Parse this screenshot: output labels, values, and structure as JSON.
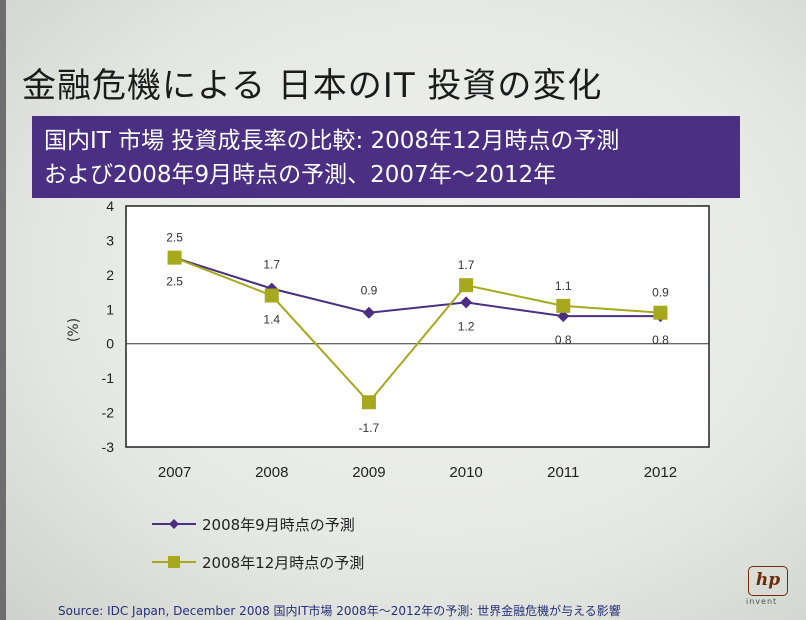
{
  "slide": {
    "title": "金融危機による 日本のIT 投資の変化",
    "banner_line1": "国内IT 市場 投資成長率の比較: 2008年12月時点の予測",
    "banner_line2": "および2008年9月時点の予測、2007年～2012年",
    "source": "Source: IDC Japan, December 2008 国内IT市場 2008年～2012年の予測: 世界金融危機が与える影響",
    "logo_text": "hp",
    "logo_tagline": "invent"
  },
  "chart_data": {
    "type": "line",
    "title": "",
    "xlabel": "",
    "ylabel": "(%)",
    "categories": [
      "2007",
      "2008",
      "2009",
      "2010",
      "2011",
      "2012"
    ],
    "ylim": [
      -3,
      4
    ],
    "yticks": [
      "4",
      "3",
      "2",
      "1",
      "0",
      "-1",
      "-2",
      "-3"
    ],
    "grid": false,
    "legend_position": "bottom-left",
    "series": [
      {
        "name": "2008年9月時点の予測",
        "values": [
          2.5,
          1.6,
          0.9,
          1.2,
          0.8,
          0.8
        ],
        "labels": [
          "2.5",
          "",
          "0.9",
          "1.2",
          "0.8",
          "0.8"
        ],
        "color": "#4a2f82",
        "marker": "diamond"
      },
      {
        "name": "2008年12月時点の予測",
        "values": [
          2.5,
          1.4,
          -1.7,
          1.7,
          1.1,
          0.9
        ],
        "labels": [
          "2.5",
          "1.4",
          "-1.7",
          "1.7",
          "1.1",
          "0.9"
        ],
        "extra_labels": [
          "",
          "1.7",
          "",
          "",
          "",
          ""
        ],
        "color": "#a6a81e",
        "marker": "square"
      }
    ]
  }
}
